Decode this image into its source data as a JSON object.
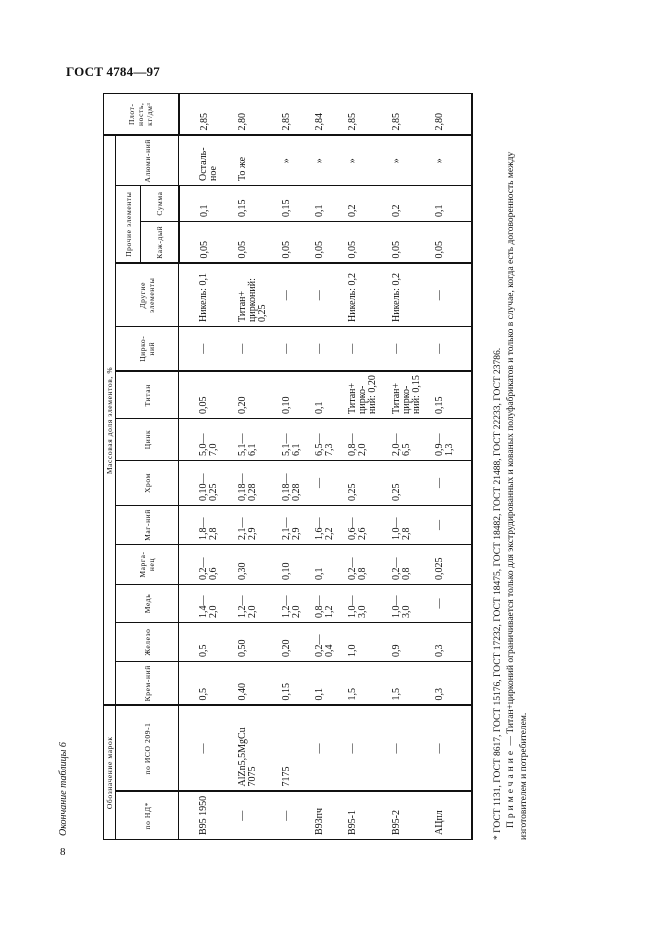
{
  "header": {
    "doc_title": "ГОСТ 4784—97",
    "page_number": "8"
  },
  "caption": "Окончание таблицы 6",
  "table": {
    "group_designation": "Обозначение марок",
    "group_composition": "Массовая доля элементов, %",
    "group_other": "Прочие элементы",
    "columns": {
      "nd": "по НД*",
      "iso": "по ИСО 209-1",
      "si": "Крем-ний",
      "fe": "Железо",
      "cu": "Медь",
      "mn": "Марга-нец",
      "mg": "Маг-ний",
      "cr": "Хром",
      "zn": "Цинк",
      "ti": "Титан",
      "zr": "Цирко-ний",
      "other": "Другие элементы",
      "each": "Каж-дый",
      "sum": "Сумма",
      "al": "Алюми-ний",
      "density": "Плот-ность, кг/дм³"
    },
    "rows": [
      {
        "nd": "В95 1950",
        "iso": "—",
        "si": "0,5",
        "fe": "0,5",
        "cu": "1,4— 2,0",
        "mn": "0,2— 0,6",
        "mg": "1,8— 2,8",
        "cr": "0,10— 0,25",
        "zn": "5,0— 7,0",
        "ti": "0,05",
        "zr": "—",
        "other": "Никель: 0,1",
        "each": "0,05",
        "sum": "0,1",
        "al": "Осталь-ное",
        "density": "2,85"
      },
      {
        "nd": "—",
        "iso": "AlZn5,5MgCu 7075",
        "si": "0,40",
        "fe": "0,50",
        "cu": "1,2— 2,0",
        "mn": "0,30",
        "mg": "2,1— 2,9",
        "cr": "0,18— 0,28",
        "zn": "5,1— 6,1",
        "ti": "0,20",
        "zr": "—",
        "other": "Титан+ цирконий: 0,25",
        "each": "0,05",
        "sum": "0,15",
        "al": "То же",
        "density": "2,80"
      },
      {
        "nd": "—",
        "iso": "7175",
        "si": "0,15",
        "fe": "0,20",
        "cu": "1,2— 2,0",
        "mn": "0,10",
        "mg": "2,1— 2,9",
        "cr": "0,18— 0,28",
        "zn": "5,1— 6,1",
        "ti": "0,10",
        "zr": "—",
        "other": "—",
        "each": "0,05",
        "sum": "0,15",
        "al": "»",
        "density": "2,85"
      },
      {
        "nd": "В93пч",
        "iso": "—",
        "si": "0,1",
        "fe": "0,2— 0,4",
        "cu": "0,8— 1,2",
        "mn": "0,1",
        "mg": "1,6— 2,2",
        "cr": "—",
        "zn": "6,5— 7,3",
        "ti": "0,1",
        "zr": "—",
        "other": "—",
        "each": "0,05",
        "sum": "0,1",
        "al": "»",
        "density": "2,84"
      },
      {
        "nd": "В95-1",
        "iso": "—",
        "si": "1,5",
        "fe": "1,0",
        "cu": "1,0— 3,0",
        "mn": "0,2— 0,8",
        "mg": "0,6— 2,6",
        "cr": "0,25",
        "zn": "0,8— 2,0",
        "ti": "Титан+ цирко-ний: 0,20",
        "zr": "—",
        "other": "Никель: 0,2",
        "each": "0,05",
        "sum": "0,2",
        "al": "»",
        "density": "2,85"
      },
      {
        "nd": "В95-2",
        "iso": "—",
        "si": "1,5",
        "fe": "0,9",
        "cu": "1,0— 3,0",
        "mn": "0,2— 0,8",
        "mg": "1,0— 2,8",
        "cr": "0,25",
        "zn": "2,0— 6,5",
        "ti": "Титан+ цирко-ний: 0,15",
        "zr": "—",
        "other": "Никель: 0,2",
        "each": "0,05",
        "sum": "0,2",
        "al": "»",
        "density": "2,85"
      },
      {
        "nd": "АЦпл",
        "iso": "—",
        "si": "0,3",
        "fe": "0,3",
        "cu": "—",
        "mn": "0,025",
        "mg": "—",
        "cr": "—",
        "zn": "0,9— 1,3",
        "ti": "0,15",
        "zr": "—",
        "other": "—",
        "each": "0,05",
        "sum": "0,1",
        "al": "»",
        "density": "2,80"
      }
    ]
  },
  "notes": {
    "footnote": "* ГОСТ 1131, ГОСТ 8617, ГОСТ 15176, ГОСТ 17232, ГОСТ 18475, ГОСТ 18482, ГОСТ 21488, ГОСТ 22233, ГОСТ 23786.",
    "note_label": "Примечание",
    "note_text": " — Титан+цирконий ограничивается только для экструдированных и кованых полуфабрикатов и только в случае, когда есть договоренность между изготовителем и потребителем."
  }
}
